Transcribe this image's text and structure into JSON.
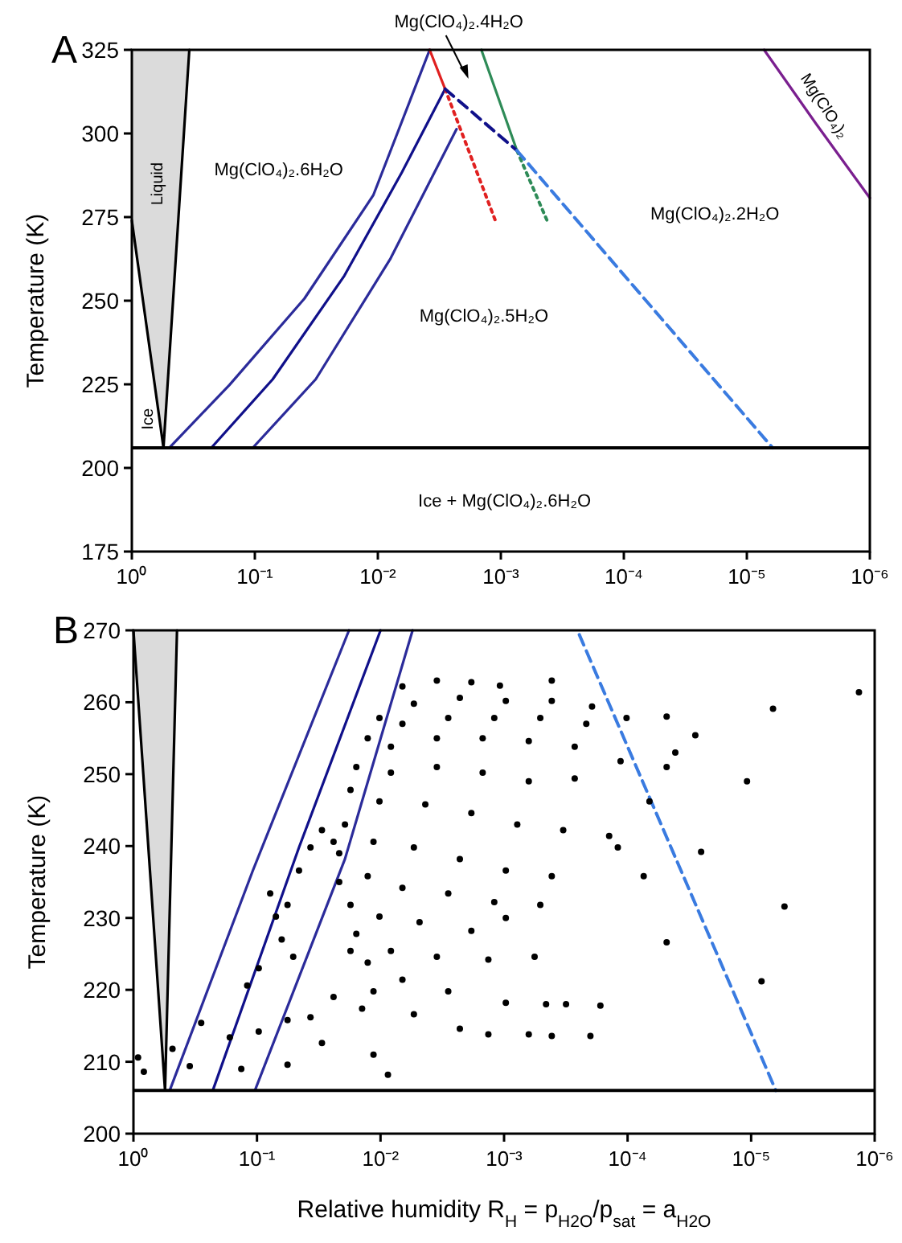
{
  "chart_data": [
    {
      "type": "line",
      "title": "A",
      "ylabel": "Temperature (K)",
      "log": "x",
      "xlim": [
        1,
        1e-06
      ],
      "ylim": [
        175,
        325
      ],
      "xticks": [
        {
          "value": 1,
          "label": "10⁰"
        },
        {
          "value": 0.1,
          "label": "10⁻¹"
        },
        {
          "value": 0.01,
          "label": "10⁻²"
        },
        {
          "value": 0.001,
          "label": "10⁻³"
        },
        {
          "value": 0.0001,
          "label": "10⁻⁴"
        },
        {
          "value": 1e-05,
          "label": "10⁻⁵"
        },
        {
          "value": 1e-06,
          "label": "10⁻⁶"
        }
      ],
      "yticks": [
        175,
        200,
        225,
        250,
        275,
        300,
        325
      ],
      "ref_lines": [
        {
          "axis": "y",
          "value": 206,
          "color": "#000000"
        }
      ],
      "series": [
        {
          "color": "#000000",
          "x": [
            1,
            0.553,
            0.341
          ],
          "values": [
            274,
            206,
            325
          ],
          "lower": [
            274,
            206,
            325
          ],
          "upper": [
            325,
            325,
            325
          ]
        },
        {
          "color": "#2b2b9a",
          "x": [
            0.497,
            0.161,
            0.0396,
            0.0109,
            0.00379
          ],
          "values": [
            206,
            224.8,
            250.6,
            281.5,
            325
          ]
        },
        {
          "color": "#10108a",
          "x": [
            0.226,
            0.0716,
            0.0187,
            0.00637,
            0.00284
          ],
          "values": [
            206,
            226.5,
            257.5,
            288.4,
            313.3
          ]
        },
        {
          "color": "#2b2b9a",
          "x": [
            0.104,
            0.032,
            0.00789,
            0.00229
          ],
          "values": [
            206,
            226.5,
            262.6,
            301.3
          ]
        },
        {
          "color": "#e02020",
          "x": [
            0.00379,
            0.00284
          ],
          "values": [
            325,
            313.3
          ]
        },
        {
          "color": "#e02020",
          "line_style": "dotted",
          "x": [
            0.00284,
            0.00108
          ],
          "values": [
            313.3,
            272.9
          ]
        },
        {
          "color": "#2e8b57",
          "x": [
            0.00144,
            0.00074
          ],
          "values": [
            325,
            294.9
          ]
        },
        {
          "color": "#2e8b57",
          "line_style": "dotted",
          "x": [
            0.00074,
            0.000409
          ],
          "values": [
            294.9,
            272.9
          ]
        },
        {
          "color": "#10108a",
          "line_style": "dashed",
          "x": [
            0.00284,
            0.00074
          ],
          "values": [
            313.3,
            294.9
          ]
        },
        {
          "color": "#3a7be0",
          "line_style": "dashed",
          "x": [
            0.00074,
            6.17e-06
          ],
          "values": [
            294.9,
            206
          ]
        },
        {
          "color": "#7a1f8f",
          "x": [
            7.24e-06,
            2.75e-06,
            1e-06
          ],
          "values": [
            325,
            303,
            280.7
          ]
        }
      ],
      "annotations": [
        "Liquid",
        "Ice",
        "Mg(ClO₄)₂.6H₂O",
        "Mg(ClO₄)₂.5H₂O",
        "Mg(ClO₄)₂.2H₂O",
        "Ice + Mg(ClO₄)₂.6H₂O",
        "Mg(ClO₄)₂",
        "Mg(ClO₄)₂.4H₂O"
      ]
    },
    {
      "type": "line",
      "title": "B",
      "ylabel": "Temperature (K)",
      "xlabel": "Relative humidity R$_{H}$ = p$_{H2O}$/p$_{sat}$ = a$_{H2O}$",
      "log": "x",
      "xlim": [
        1,
        1e-06
      ],
      "ylim": [
        200,
        270
      ],
      "xticks": [
        {
          "value": 1,
          "label": "10⁰"
        },
        {
          "value": 0.1,
          "label": "10⁻¹"
        },
        {
          "value": 0.01,
          "label": "10⁻²"
        },
        {
          "value": 0.001,
          "label": "10⁻³"
        },
        {
          "value": 0.0001,
          "label": "10⁻⁴"
        },
        {
          "value": 1e-05,
          "label": "10⁻⁵"
        },
        {
          "value": 1e-06,
          "label": "10⁻⁶"
        }
      ],
      "yticks": [
        200,
        210,
        220,
        230,
        240,
        250,
        260,
        270
      ],
      "ref_lines": [
        {
          "axis": "y",
          "value": 206,
          "color": "#000000"
        }
      ],
      "series": [
        {
          "color": "#000000",
          "x": [
            1,
            0.555,
            0.444
          ],
          "values": [
            270,
            206,
            270
          ],
          "lower": [
            270,
            206,
            270
          ],
          "upper": [
            270,
            270,
            270
          ]
        },
        {
          "color": "#2b2b9a",
          "x": [
            0.509,
            0.108,
            0.018
          ],
          "values": [
            206,
            236.6,
            270
          ]
        },
        {
          "color": "#10108a",
          "x": [
            0.228,
            0.0457,
            0.01
          ],
          "values": [
            206,
            239.8,
            270
          ]
        },
        {
          "color": "#2b2b9a",
          "x": [
            0.104,
            0.0194,
            0.0055
          ],
          "values": [
            206,
            238.2,
            270
          ]
        },
        {
          "color": "#3a7be0",
          "line_style": "dashed",
          "x": [
            0.000246,
            6.31e-06
          ],
          "values": [
            269.4,
            206
          ]
        },
        {
          "type": "scatter",
          "color": "#000000",
          "marker": "circle",
          "x": [
            0.00665,
            0.0035,
            0.00184,
            0.00108,
            0.000411,
            0.0102,
            0.00537,
            0.00228,
            0.000968,
            0.000411,
            0.000194,
            0.0127,
            0.00665,
            0.00283,
            0.0012,
            0.000509,
            0.000216,
            0.000102,
            0.0157,
            0.00824,
            0.0035,
            0.00149,
            0.000631,
            0.000268,
            0.000114,
            4.83e-05,
            0.0175,
            0.00824,
            0.0035,
            0.00149,
            0.000631,
            0.000268,
            0.0194,
            0.0102,
            0.00434,
            0.00184,
            0.000782,
            0.000332,
            0.000141,
            0.0216,
            0.0114,
            0.00537,
            0.00228,
            0.000968,
            0.000411,
            0.0216,
            0.0127,
            0.00665,
            0.00283,
            0.0012,
            0.000509,
            0.0175,
            0.0102,
            0.00483,
            0.00184,
            0.000968,
            0.0157,
            0.00824,
            0.0035,
            0.00134,
            0.000566,
            0.0127,
            0.00665,
            0.00283,
            0.000968,
            0.000457,
            0.0114,
            0.00537,
            0.00228,
            0.00134,
            0.000631,
            0.0175,
            0.0141,
            0.0114,
            0.00871,
            0.0782,
            0.0566,
            0.0457,
            0.0369,
            0.0298,
            0.024,
            0.0631,
            0.0509,
            0.12,
            0.0968,
            0.0703,
            0.918,
            0.483,
            0.283,
            0.166,
            0.0968,
            0.0566,
            0.0369,
            0.0298,
            0.024,
            0.824,
            0.35,
            0.134,
            0.0566,
            4.83e-05,
            2.83e-05,
            4.11e-05,
            6.65e-06,
            1.34e-06,
            1.08e-05,
            2.54e-05,
            5.37e-06,
            8.24e-06,
            4.83e-05,
            7.41e-05,
            0.0002,
            0.000411,
            0.000315,
            0.000166,
            6.65e-05,
            0.00012
          ],
          "values": [
            262.2,
            263,
            262.8,
            262.3,
            263,
            257.8,
            259.8,
            260.6,
            260.2,
            260.2,
            259.4,
            255,
            257,
            257.8,
            257.8,
            257.8,
            257,
            257.8,
            251,
            253.8,
            255,
            255,
            254.6,
            253.8,
            251.8,
            251,
            247.8,
            250.2,
            251,
            250.2,
            249,
            249.4,
            243,
            246.2,
            245.8,
            244.6,
            243,
            242.2,
            241.4,
            239,
            240.6,
            239.8,
            238.2,
            236.6,
            235.8,
            235,
            235.8,
            234.2,
            233.4,
            232.2,
            231.8,
            231.8,
            230.2,
            229.4,
            228.2,
            230,
            227.8,
            225.4,
            224.6,
            224.2,
            224.6,
            223.8,
            221.4,
            219.8,
            218.2,
            218,
            219.8,
            216.6,
            214.6,
            213.8,
            213.8,
            225.4,
            217.4,
            211,
            208.2,
            233.4,
            231.8,
            236.6,
            239.8,
            242.2,
            240.6,
            227,
            224.6,
            220.6,
            223,
            230.2,
            210.6,
            211.8,
            215.4,
            213.4,
            214.2,
            215.8,
            216.2,
            212.6,
            219,
            208.6,
            209.4,
            209,
            209.6,
            258,
            255.4,
            253,
            259.1,
            261.4,
            249,
            239.2,
            231.6,
            221.2,
            226.6,
            235.8,
            213.6,
            213.6,
            218,
            217.8,
            246.2,
            239.8
          ]
        }
      ]
    }
  ]
}
